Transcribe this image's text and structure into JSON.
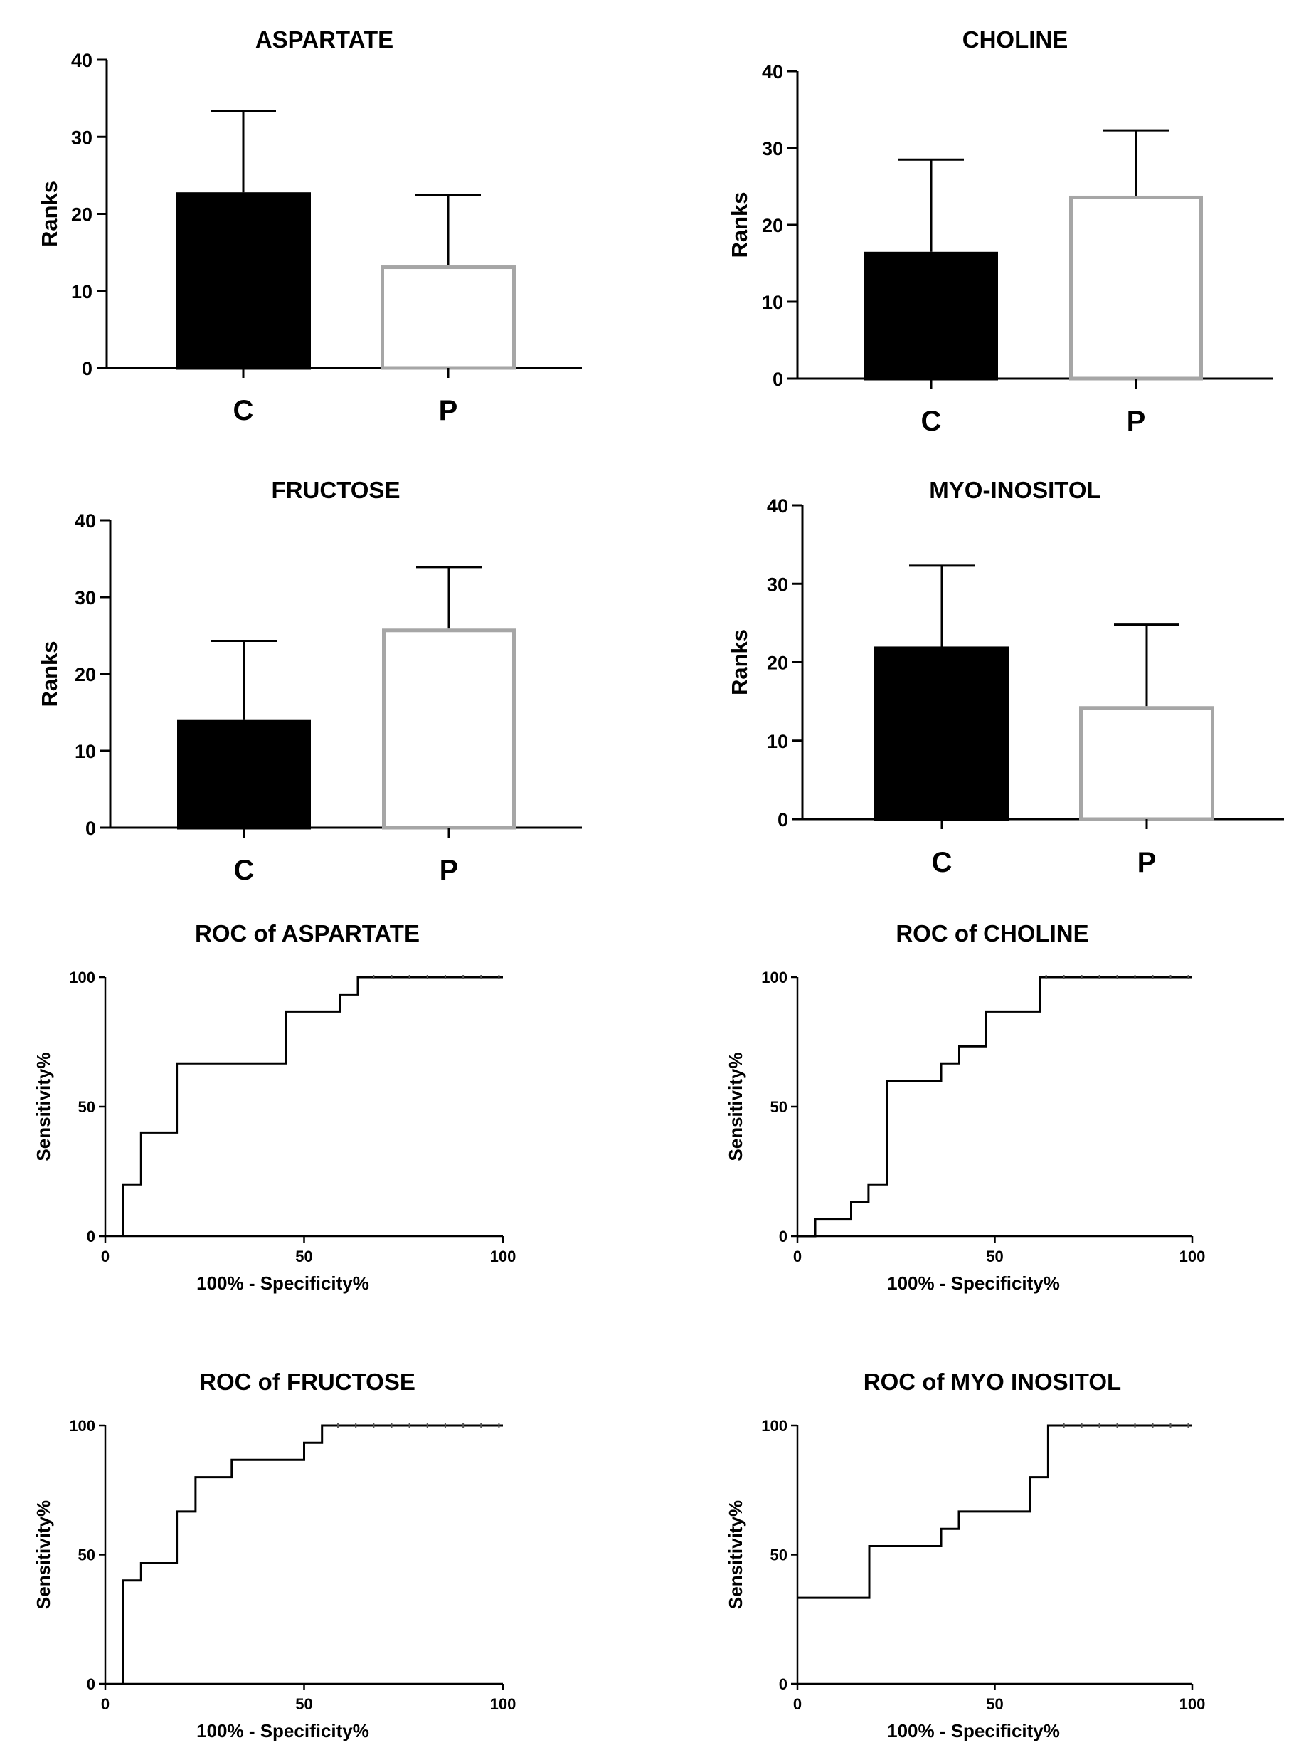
{
  "chart_data": [
    {
      "type": "bar",
      "title": "ASPARTATE",
      "ylabel": "Ranks",
      "categories": [
        "C",
        "P"
      ],
      "values": [
        22.8,
        13.3
      ],
      "error_upper": [
        33.4,
        22.4
      ],
      "ylim": [
        0,
        40
      ],
      "yticks": [
        "0",
        "10",
        "20",
        "30",
        "40"
      ],
      "bar_fill": [
        "#000000",
        "#ffffff"
      ],
      "bar_stroke": [
        "#000000",
        "#a6a6a6"
      ]
    },
    {
      "type": "bar",
      "title": "CHOLINE",
      "ylabel": "Ranks",
      "categories": [
        "C",
        "P"
      ],
      "values": [
        16.5,
        23.8
      ],
      "error_upper": [
        28.5,
        32.3
      ],
      "ylim": [
        0,
        40
      ],
      "yticks": [
        "0",
        "10",
        "20",
        "30",
        "40"
      ],
      "bar_fill": [
        "#000000",
        "#ffffff"
      ],
      "bar_stroke": [
        "#000000",
        "#a6a6a6"
      ]
    },
    {
      "type": "bar",
      "title": "FRUCTOSE",
      "ylabel": "Ranks",
      "categories": [
        "C",
        "P"
      ],
      "values": [
        14.1,
        25.9
      ],
      "error_upper": [
        24.3,
        33.9
      ],
      "ylim": [
        0,
        40
      ],
      "yticks": [
        "0",
        "10",
        "20",
        "30",
        "40"
      ],
      "bar_fill": [
        "#000000",
        "#ffffff"
      ],
      "bar_stroke": [
        "#000000",
        "#a6a6a6"
      ]
    },
    {
      "type": "bar",
      "title": "MYO-INOSITOL",
      "ylabel": "Ranks",
      "categories": [
        "C",
        "P"
      ],
      "values": [
        22.0,
        14.4
      ],
      "error_upper": [
        32.3,
        24.8
      ],
      "ylim": [
        0,
        40
      ],
      "yticks": [
        "0",
        "10",
        "20",
        "30",
        "40"
      ],
      "bar_fill": [
        "#000000",
        "#ffffff"
      ],
      "bar_stroke": [
        "#000000",
        "#a6a6a6"
      ]
    },
    {
      "type": "line",
      "title": "ROC of ASPARTATE",
      "xlabel": "100% - Specificity%",
      "ylabel": "Sensitivity%",
      "xlim": [
        0,
        100
      ],
      "ylim": [
        0,
        100
      ],
      "xticks": [
        "0",
        "50",
        "100"
      ],
      "yticks": [
        "0",
        "50",
        "100"
      ],
      "x": [
        4.5,
        4.5,
        9,
        9,
        18,
        18,
        45.5,
        45.5,
        59,
        59,
        63.5,
        63.5,
        100
      ],
      "y": [
        0,
        20,
        20,
        40,
        40,
        66.7,
        66.7,
        86.7,
        86.7,
        93.3,
        93.3,
        100,
        100
      ]
    },
    {
      "type": "line",
      "title": "ROC of CHOLINE",
      "xlabel": "100% - Specificity%",
      "ylabel": "Sensitivity%",
      "xlim": [
        0,
        100
      ],
      "ylim": [
        0,
        100
      ],
      "xticks": [
        "0",
        "50",
        "100"
      ],
      "yticks": [
        "0",
        "50",
        "100"
      ],
      "x": [
        0,
        4.5,
        4.5,
        13.6,
        13.6,
        18,
        18,
        22.7,
        22.7,
        36.4,
        36.4,
        41,
        41,
        47.7,
        47.7,
        61.4,
        61.4,
        100
      ],
      "y": [
        0,
        0,
        6.7,
        6.7,
        13.3,
        13.3,
        20,
        20,
        60,
        60,
        66.7,
        66.7,
        73.3,
        73.3,
        86.7,
        86.7,
        100,
        100
      ]
    },
    {
      "type": "line",
      "title": "ROC of FRUCTOSE",
      "xlabel": "100% - Specificity%",
      "ylabel": "Sensitivity%",
      "xlim": [
        0,
        100
      ],
      "ylim": [
        0,
        100
      ],
      "xticks": [
        "0",
        "50",
        "100"
      ],
      "yticks": [
        "0",
        "50",
        "100"
      ],
      "x": [
        4.5,
        4.5,
        9,
        9,
        18,
        18,
        22.7,
        22.7,
        31.8,
        31.8,
        50,
        50,
        54.5,
        54.5,
        100
      ],
      "y": [
        0,
        40,
        40,
        46.7,
        46.7,
        66.7,
        66.7,
        80,
        80,
        86.7,
        86.7,
        93.3,
        93.3,
        100,
        100
      ]
    },
    {
      "type": "line",
      "title": "ROC of MYO INOSITOL",
      "xlabel": "100% - Specificity%",
      "ylabel": "Sensitivity%",
      "xlim": [
        0,
        100
      ],
      "ylim": [
        0,
        100
      ],
      "xticks": [
        "0",
        "50",
        "100"
      ],
      "yticks": [
        "0",
        "50",
        "100"
      ],
      "x": [
        0,
        18.2,
        18.2,
        36.4,
        36.4,
        40.9,
        40.9,
        59,
        59,
        63.5,
        63.5,
        100
      ],
      "y": [
        33.3,
        33.3,
        53.3,
        53.3,
        60,
        60,
        66.7,
        66.7,
        80,
        80,
        100,
        100
      ]
    }
  ]
}
